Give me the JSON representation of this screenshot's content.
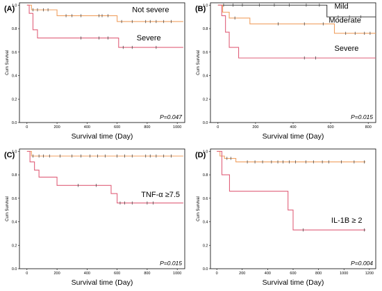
{
  "figure": {
    "chart_data": [
      {
        "type": "line",
        "panel_label": "(A)",
        "ylabel": "Cum Survival",
        "xlabel": "Survival time (Day)",
        "xlim": [
          -50,
          1050
        ],
        "ylim": [
          0,
          1.02
        ],
        "xticks": [
          0,
          200,
          400,
          600,
          800,
          1000
        ],
        "yticks": [
          0.0,
          0.2,
          0.4,
          0.6,
          0.8,
          1.0
        ],
        "p_value": "P=0.047",
        "series": [
          {
            "name": "Not severe",
            "color": "#f0a060",
            "steps": [
              [
                0,
                1.0
              ],
              [
                30,
                0.96
              ],
              [
                200,
                0.91
              ],
              [
                600,
                0.86
              ],
              [
                1040,
                0.86
              ]
            ],
            "censors": [
              [
                40,
                0.96
              ],
              [
                70,
                0.96
              ],
              [
                110,
                0.96
              ],
              [
                140,
                0.96
              ],
              [
                260,
                0.91
              ],
              [
                300,
                0.91
              ],
              [
                360,
                0.91
              ],
              [
                480,
                0.91
              ],
              [
                500,
                0.91
              ],
              [
                540,
                0.91
              ],
              [
                630,
                0.86
              ],
              [
                700,
                0.86
              ],
              [
                790,
                0.86
              ],
              [
                820,
                0.86
              ],
              [
                860,
                0.86
              ],
              [
                910,
                0.86
              ],
              [
                960,
                0.86
              ]
            ]
          },
          {
            "name": "Severe",
            "color": "#e0607a",
            "steps": [
              [
                0,
                1.0
              ],
              [
                15,
                0.93
              ],
              [
                40,
                0.79
              ],
              [
                70,
                0.72
              ],
              [
                610,
                0.64
              ],
              [
                1040,
                0.64
              ]
            ],
            "censors": [
              [
                360,
                0.72
              ],
              [
                480,
                0.72
              ],
              [
                540,
                0.72
              ],
              [
                640,
                0.64
              ],
              [
                700,
                0.64
              ],
              [
                860,
                0.64
              ]
            ]
          }
        ],
        "annotations": [
          {
            "text": "Not severe",
            "x": 700,
            "y": 0.94
          },
          {
            "text": "Severe",
            "x": 730,
            "y": 0.7
          }
        ]
      },
      {
        "type": "line",
        "panel_label": "(B)",
        "ylabel": "Cum Survival",
        "xlabel": "Survival time (Day)",
        "xlim": [
          -40,
          840
        ],
        "ylim": [
          0,
          1.02
        ],
        "xticks": [
          0,
          200,
          400,
          600,
          800
        ],
        "yticks": [
          0.0,
          0.2,
          0.4,
          0.6,
          0.8,
          1.0
        ],
        "p_value": "P=0.015",
        "series": [
          {
            "name": "Mild",
            "color": "#404040",
            "steps": [
              [
                0,
                1.0
              ],
              [
                580,
                0.9
              ],
              [
                840,
                0.9
              ]
            ],
            "censors": [
              [
                30,
                1.0
              ],
              [
                80,
                1.0
              ],
              [
                130,
                1.0
              ],
              [
                220,
                1.0
              ],
              [
                300,
                1.0
              ],
              [
                380,
                1.0
              ],
              [
                470,
                1.0
              ],
              [
                540,
                1.0
              ],
              [
                640,
                0.9
              ],
              [
                700,
                0.9
              ],
              [
                760,
                0.9
              ]
            ]
          },
          {
            "name": "Moderate",
            "color": "#f0a060",
            "steps": [
              [
                0,
                1.0
              ],
              [
                25,
                0.94
              ],
              [
                60,
                0.89
              ],
              [
                170,
                0.84
              ],
              [
                620,
                0.76
              ],
              [
                840,
                0.76
              ]
            ],
            "censors": [
              [
                90,
                0.89
              ],
              [
                320,
                0.84
              ],
              [
                460,
                0.84
              ],
              [
                560,
                0.84
              ],
              [
                680,
                0.76
              ],
              [
                730,
                0.76
              ],
              [
                780,
                0.76
              ],
              [
                810,
                0.76
              ]
            ]
          },
          {
            "name": "Severe",
            "color": "#e0607a",
            "steps": [
              [
                0,
                1.0
              ],
              [
                20,
                0.91
              ],
              [
                40,
                0.77
              ],
              [
                60,
                0.64
              ],
              [
                110,
                0.55
              ],
              [
                840,
                0.55
              ]
            ],
            "censors": [
              [
                460,
                0.55
              ],
              [
                520,
                0.55
              ]
            ]
          }
        ],
        "annotations": [
          {
            "text": "Mild",
            "x": 620,
            "y": 0.97
          },
          {
            "text": "Moderate",
            "x": 590,
            "y": 0.85
          },
          {
            "text": "Severe",
            "x": 620,
            "y": 0.61
          }
        ]
      },
      {
        "type": "line",
        "panel_label": "(C)",
        "ylabel": "Cum Survival",
        "xlabel": "Survival time (Day)",
        "xlim": [
          -50,
          1050
        ],
        "ylim": [
          0,
          1.02
        ],
        "xticks": [
          0,
          200,
          400,
          600,
          800,
          1000
        ],
        "yticks": [
          0.0,
          0.2,
          0.4,
          0.6,
          0.8,
          1.0
        ],
        "p_value": "P=0.015",
        "series": [
          {
            "name": "",
            "color": "#f0a060",
            "steps": [
              [
                0,
                1.0
              ],
              [
                30,
                0.96
              ],
              [
                1040,
                0.96
              ]
            ],
            "censors": [
              [
                40,
                0.96
              ],
              [
                80,
                0.96
              ],
              [
                110,
                0.96
              ],
              [
                150,
                0.96
              ],
              [
                220,
                0.96
              ],
              [
                300,
                0.96
              ],
              [
                360,
                0.96
              ],
              [
                420,
                0.96
              ],
              [
                470,
                0.96
              ],
              [
                520,
                0.96
              ],
              [
                600,
                0.96
              ],
              [
                650,
                0.96
              ],
              [
                700,
                0.96
              ],
              [
                790,
                0.96
              ],
              [
                820,
                0.96
              ],
              [
                860,
                0.96
              ],
              [
                910,
                0.96
              ],
              [
                960,
                0.96
              ]
            ]
          },
          {
            "name": "TNF-α ≥7.5",
            "color": "#e0607a",
            "steps": [
              [
                0,
                1.0
              ],
              [
                20,
                0.91
              ],
              [
                50,
                0.84
              ],
              [
                80,
                0.78
              ],
              [
                200,
                0.71
              ],
              [
                560,
                0.64
              ],
              [
                600,
                0.56
              ],
              [
                1040,
                0.56
              ]
            ],
            "censors": [
              [
                340,
                0.71
              ],
              [
                460,
                0.71
              ],
              [
                620,
                0.56
              ],
              [
                650,
                0.56
              ],
              [
                700,
                0.56
              ],
              [
                800,
                0.56
              ],
              [
                840,
                0.56
              ]
            ]
          }
        ],
        "annotations": [
          {
            "text": "TNF-α ≥7.5",
            "x": 760,
            "y": 0.61
          }
        ]
      },
      {
        "type": "line",
        "panel_label": "(D)",
        "ylabel": "Cum Survival",
        "xlabel": "Survival time (Day)",
        "xlim": [
          -50,
          1250
        ],
        "ylim": [
          0,
          1.02
        ],
        "xticks": [
          0,
          200,
          400,
          600,
          800,
          1000,
          1200
        ],
        "yticks": [
          0.0,
          0.2,
          0.4,
          0.6,
          0.8,
          1.0
        ],
        "p_value": "P=0.004",
        "series": [
          {
            "name": "",
            "color": "#f0a060",
            "steps": [
              [
                0,
                1.0
              ],
              [
                25,
                0.96
              ],
              [
                60,
                0.94
              ],
              [
                150,
                0.91
              ],
              [
                1170,
                0.91
              ]
            ],
            "censors": [
              [
                40,
                0.96
              ],
              [
                80,
                0.94
              ],
              [
                110,
                0.94
              ],
              [
                240,
                0.91
              ],
              [
                300,
                0.91
              ],
              [
                360,
                0.91
              ],
              [
                430,
                0.91
              ],
              [
                480,
                0.91
              ],
              [
                520,
                0.91
              ],
              [
                570,
                0.91
              ],
              [
                620,
                0.91
              ],
              [
                700,
                0.91
              ],
              [
                760,
                0.91
              ],
              [
                830,
                0.91
              ],
              [
                880,
                0.91
              ],
              [
                980,
                0.91
              ],
              [
                1080,
                0.91
              ],
              [
                1160,
                0.91
              ]
            ]
          },
          {
            "name": "IL-1B ≥ 2",
            "color": "#e0607a",
            "steps": [
              [
                0,
                1.0
              ],
              [
                40,
                0.8
              ],
              [
                100,
                0.66
              ],
              [
                560,
                0.5
              ],
              [
                600,
                0.33
              ],
              [
                1170,
                0.33
              ]
            ],
            "censors": [
              [
                680,
                0.33
              ],
              [
                1160,
                0.33
              ]
            ]
          }
        ],
        "annotations": [
          {
            "text": "IL-1B ≥ 2",
            "x": 900,
            "y": 0.39
          }
        ]
      }
    ]
  }
}
